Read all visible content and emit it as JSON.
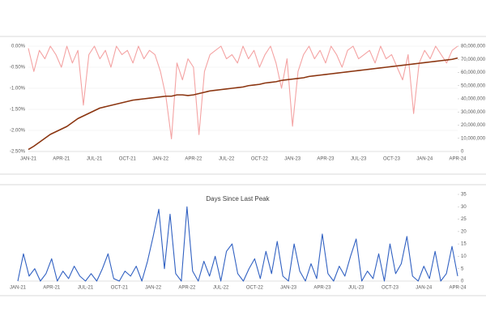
{
  "chart_data": [
    {
      "type": "line",
      "categories": [
        "JAN-21",
        null,
        null,
        null,
        null,
        null,
        "APR-21",
        null,
        null,
        null,
        null,
        null,
        "JUL-21",
        null,
        null,
        null,
        null,
        null,
        "OCT-21",
        null,
        null,
        null,
        null,
        null,
        "JAN-22",
        null,
        null,
        null,
        null,
        null,
        "APR-22",
        null,
        null,
        null,
        null,
        null,
        "JUL-22",
        null,
        null,
        null,
        null,
        null,
        "OCT-22",
        null,
        null,
        null,
        null,
        null,
        "JAN-23",
        null,
        null,
        null,
        null,
        null,
        "APR-23",
        null,
        null,
        null,
        null,
        null,
        "JUL-23",
        null,
        null,
        null,
        null,
        null,
        "OCT-23",
        null,
        null,
        null,
        null,
        null,
        "JAN-24",
        null,
        null,
        null,
        null,
        null,
        "APR-24"
      ],
      "ylim": [
        -2.5,
        0
      ],
      "yticks": [
        {
          "value": 0,
          "label": "0.00%"
        },
        {
          "value": -0.5,
          "label": "-0.50%"
        },
        {
          "value": -1,
          "label": "-1.00%"
        },
        {
          "value": -1.5,
          "label": "-1.50%"
        },
        {
          "value": -2,
          "label": "-2.00%"
        },
        {
          "value": -2.5,
          "label": "-2.50%"
        }
      ],
      "y2lim": [
        0,
        80000000
      ],
      "y2ticks": [
        0,
        {
          "value": 10000000,
          "label": "10,000,000"
        },
        {
          "value": 20000000,
          "label": "20,000,000"
        },
        {
          "value": 30000000,
          "label": "30,000,000"
        },
        {
          "value": 40000000,
          "label": "40,000,000"
        },
        {
          "value": 50000000,
          "label": "50,000,000"
        },
        {
          "value": 60000000,
          "label": "60,000,000"
        },
        {
          "value": 70000000,
          "label": "70,000,000"
        },
        {
          "value": 80000000,
          "label": "80,000,000"
        }
      ],
      "series": [
        {
          "color": "#f4a3a3",
          "values": [
            -0.05,
            -0.6,
            -0.1,
            -0.3,
            0,
            -0.2,
            -0.5,
            0,
            -0.4,
            -0.1,
            -1.4,
            -0.2,
            0,
            -0.3,
            -0.1,
            -0.5,
            0,
            -0.2,
            -0.1,
            -0.4,
            0,
            -0.3,
            -0.1,
            -0.2,
            -0.6,
            -1.2,
            -2.2,
            -0.4,
            -0.8,
            -0.3,
            -0.5,
            -2.1,
            -0.6,
            -0.2,
            -0.1,
            0,
            -0.3,
            -0.2,
            -0.4,
            0,
            -0.3,
            -0.1,
            -0.5,
            -0.2,
            0,
            -0.4,
            -1.0,
            -0.3,
            -1.9,
            -0.6,
            -0.2,
            0,
            -0.3,
            -0.1,
            -0.4,
            0,
            -0.2,
            -0.5,
            -0.1,
            0,
            -0.3,
            -0.2,
            -0.1,
            -0.4,
            0,
            -0.3,
            -0.2,
            -0.5,
            -0.8,
            -0.2,
            -1.6,
            -0.4,
            -0.1,
            -0.3,
            0,
            -0.2,
            -0.4,
            -0.1,
            0
          ]
        },
        {
          "color": "#8b3510",
          "axis": "y2",
          "values": [
            1500000,
            4000000,
            7000000,
            10000000,
            13000000,
            15000000,
            17000000,
            19000000,
            22000000,
            25000000,
            27000000,
            29000000,
            31000000,
            33000000,
            34000000,
            35000000,
            36000000,
            37000000,
            38000000,
            39000000,
            39500000,
            40000000,
            40500000,
            41000000,
            41500000,
            42000000,
            42000000,
            43000000,
            43000000,
            42500000,
            43000000,
            44000000,
            45000000,
            46000000,
            46500000,
            47000000,
            47500000,
            48000000,
            48500000,
            49000000,
            50000000,
            50500000,
            51000000,
            52000000,
            52500000,
            53000000,
            54000000,
            54500000,
            55000000,
            55500000,
            56000000,
            57000000,
            57500000,
            58000000,
            58500000,
            59000000,
            59500000,
            60000000,
            60500000,
            61000000,
            61500000,
            62000000,
            62500000,
            63000000,
            63500000,
            64000000,
            64500000,
            65000000,
            65500000,
            66000000,
            66500000,
            67000000,
            67500000,
            68000000,
            68500000,
            69000000,
            69500000,
            70000000,
            71000000
          ]
        }
      ]
    },
    {
      "type": "line",
      "title": "Days Since Last Peak",
      "categories": [
        "JAN-21",
        null,
        null,
        null,
        null,
        null,
        "APR-21",
        null,
        null,
        null,
        null,
        null,
        "JUL-21",
        null,
        null,
        null,
        null,
        null,
        "OCT-21",
        null,
        null,
        null,
        null,
        null,
        "JAN-22",
        null,
        null,
        null,
        null,
        null,
        "APR-22",
        null,
        null,
        null,
        null,
        null,
        "JUL-22",
        null,
        null,
        null,
        null,
        null,
        "OCT-22",
        null,
        null,
        null,
        null,
        null,
        "JAN-23",
        null,
        null,
        null,
        null,
        null,
        "APR-23",
        null,
        null,
        null,
        null,
        null,
        "JUL-23",
        null,
        null,
        null,
        null,
        null,
        "OCT-23",
        null,
        null,
        null,
        null,
        null,
        "JAN-24",
        null,
        null,
        null,
        null,
        null,
        "APR-24"
      ],
      "y2lim": [
        0,
        35
      ],
      "y2ticks": [
        0,
        5,
        10,
        15,
        20,
        25,
        30,
        35
      ],
      "series": [
        {
          "color": "#3161c2",
          "axis": "y2",
          "values": [
            0,
            11,
            2,
            5,
            0,
            3,
            9,
            0,
            4,
            1,
            6,
            2,
            0,
            3,
            0,
            5,
            11,
            1,
            0,
            4,
            2,
            6,
            0,
            8,
            18,
            29,
            5,
            27,
            3,
            0,
            30,
            4,
            0,
            8,
            2,
            10,
            0,
            12,
            15,
            3,
            0,
            5,
            9,
            1,
            12,
            3,
            16,
            2,
            0,
            15,
            4,
            0,
            7,
            1,
            19,
            3,
            0,
            6,
            2,
            10,
            17,
            0,
            4,
            1,
            11,
            0,
            15,
            3,
            7,
            18,
            2,
            0,
            6,
            1,
            12,
            0,
            3,
            14,
            2
          ]
        }
      ]
    }
  ]
}
